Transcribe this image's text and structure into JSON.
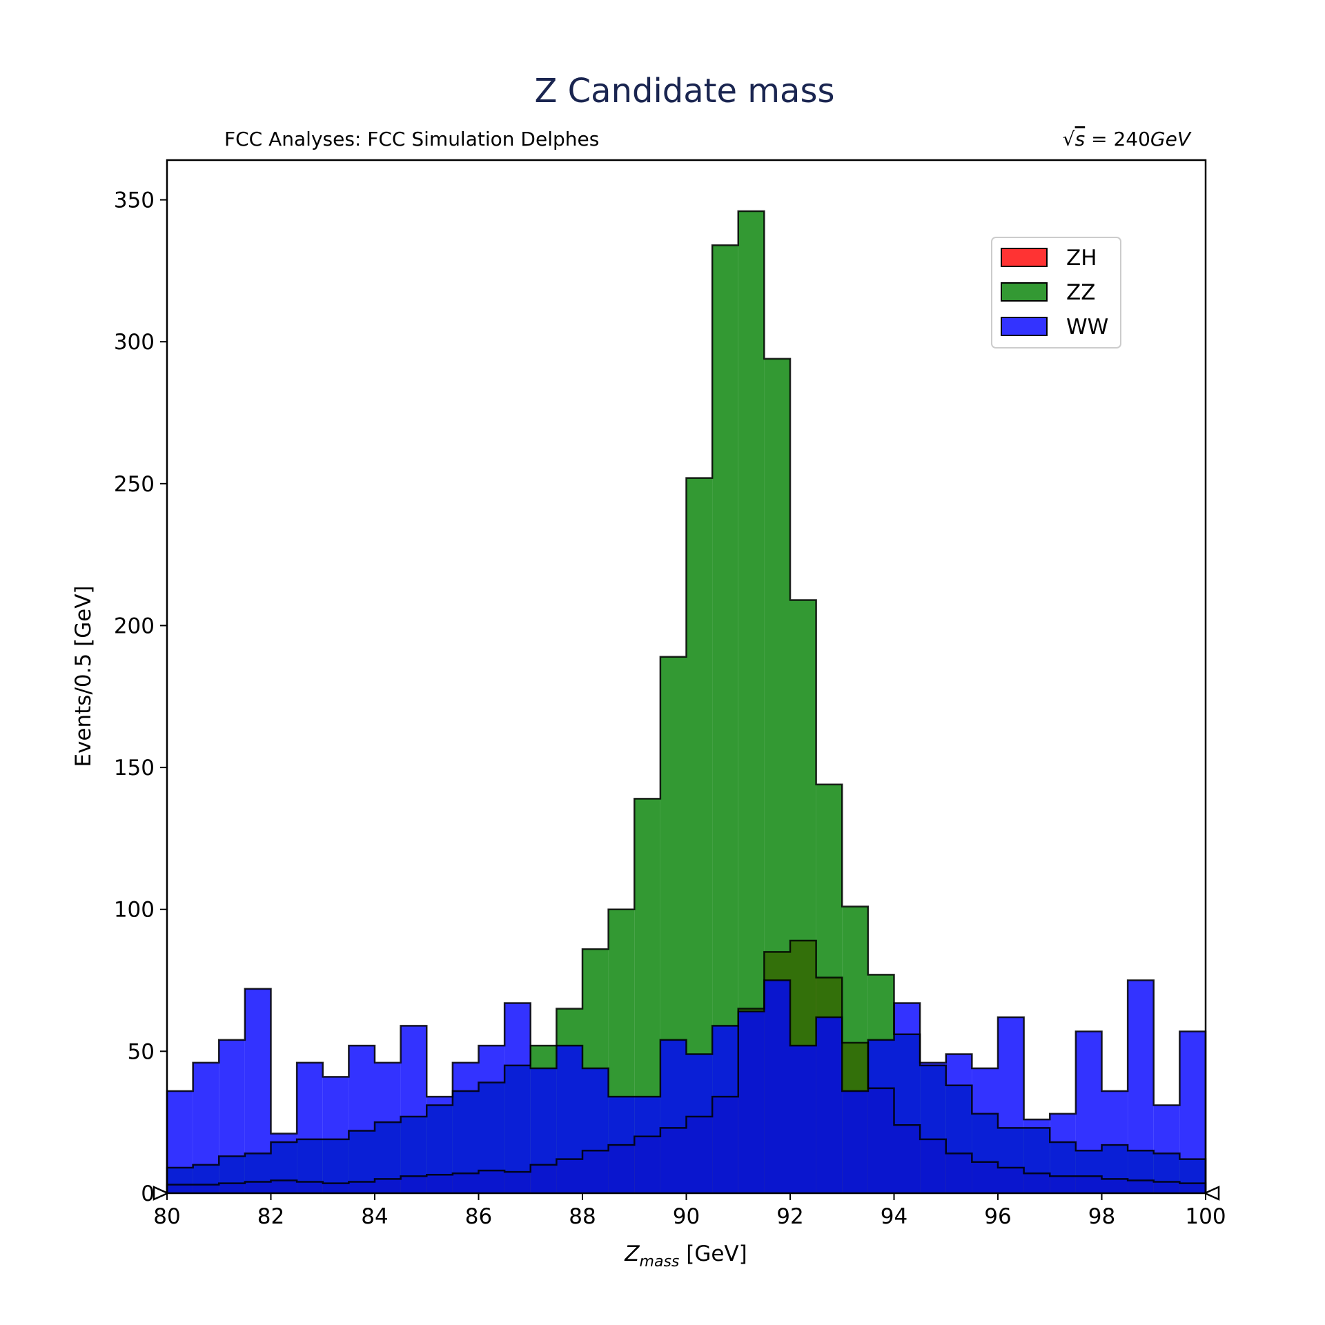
{
  "chart_data": {
    "type": "bar",
    "title": "Z Candidate mass",
    "subtitle_left": "FCC Analyses: FCC Simulation Delphes",
    "subtitle_right": {
      "sqrt": "√",
      "s": "s",
      "rest": " = 240",
      "unit": "GeV"
    },
    "xlabel": {
      "main": "Z",
      "sub": "mass",
      "unit": " [GeV]"
    },
    "ylabel": "Events/0.5 [GeV]",
    "xlim": [
      80,
      100
    ],
    "ylim": [
      0,
      364
    ],
    "x_ticks": [
      80,
      82,
      84,
      86,
      88,
      90,
      92,
      94,
      96,
      98,
      100
    ],
    "y_ticks": [
      0,
      50,
      100,
      150,
      200,
      250,
      300,
      350
    ],
    "bin_width": 0.5,
    "bin_edges_start": 80,
    "legend_placement": "upper-right",
    "series": [
      {
        "name": "ZH",
        "color": "#ff0000",
        "values": [
          3,
          3,
          3.5,
          4,
          4.5,
          4,
          3.5,
          4,
          5,
          6,
          6.5,
          7,
          8,
          7.5,
          10,
          12,
          15,
          17,
          20,
          23,
          27,
          34,
          65,
          85,
          89,
          76,
          53,
          37,
          24,
          19,
          14,
          11,
          9,
          7,
          6,
          6,
          5,
          4.5,
          4,
          3.5
        ]
      },
      {
        "name": "ZZ",
        "color": "#008000",
        "values": [
          9,
          10,
          13,
          14,
          18,
          19,
          19,
          22,
          25,
          27,
          31,
          36,
          39,
          45,
          52,
          65,
          86,
          100,
          139,
          189,
          252,
          334,
          346,
          294,
          209,
          144,
          101,
          77,
          56,
          45,
          38,
          28,
          23,
          23,
          18,
          15,
          17,
          15,
          14,
          12
        ]
      },
      {
        "name": "WW",
        "color": "#0000ff",
        "values": [
          36,
          46,
          54,
          72,
          21,
          46,
          41,
          52,
          46,
          59,
          34,
          46,
          52,
          67,
          44,
          52,
          44,
          34,
          34,
          54,
          49,
          59,
          64,
          75,
          52,
          62,
          36,
          54,
          67,
          46,
          49,
          44,
          62,
          26,
          28,
          57,
          36,
          75,
          31,
          57
        ]
      }
    ],
    "grid": false
  }
}
